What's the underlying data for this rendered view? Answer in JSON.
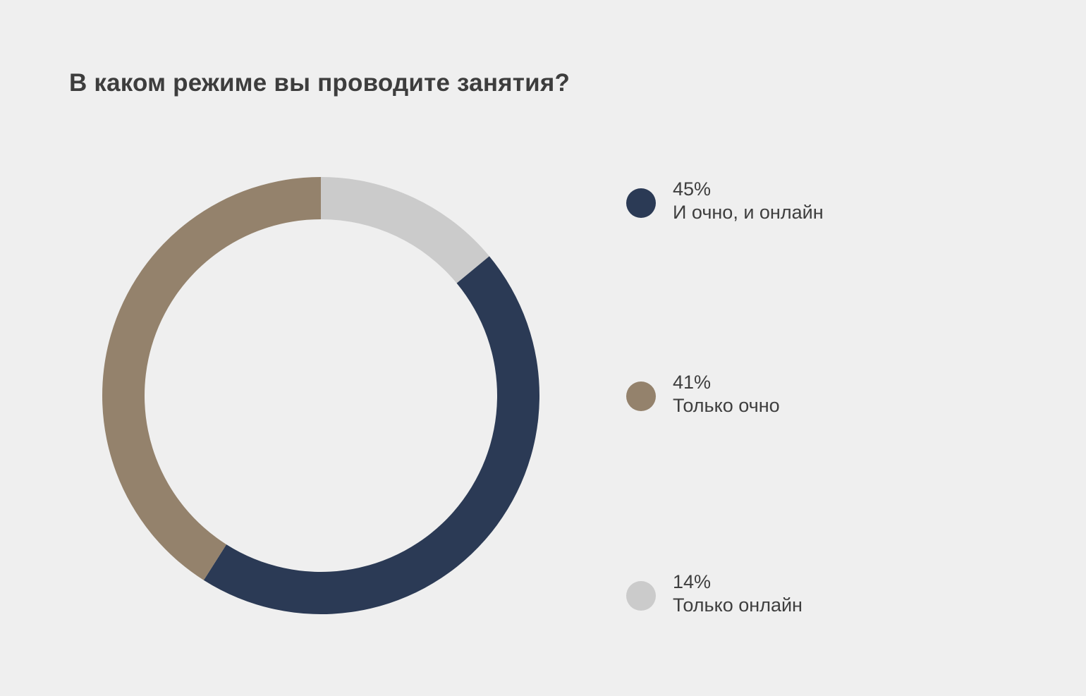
{
  "chart_data": {
    "type": "pie",
    "variant": "donut",
    "title": "В каком режиме вы проводите занятия?",
    "categories": [
      "И очно, и онлайн",
      "Только очно",
      "Только онлайн"
    ],
    "values": [
      45,
      41,
      14
    ],
    "value_labels": [
      "45%",
      "41%",
      "14%"
    ],
    "colors": [
      "#2b3a55",
      "#94826c",
      "#cbcbcb"
    ],
    "direction": "clockwise",
    "start_category": "Только онлайн",
    "start_angle": "top",
    "legend_position": "right"
  }
}
